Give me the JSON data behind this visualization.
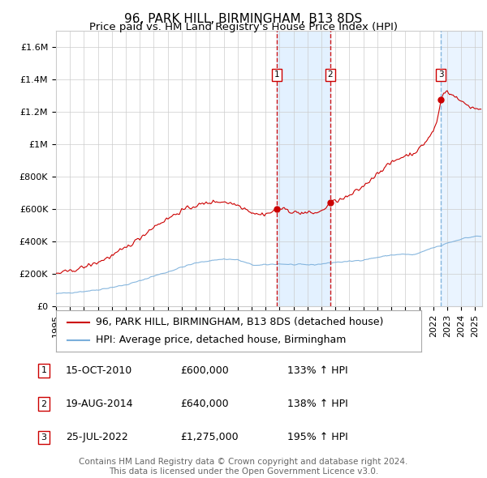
{
  "title": "96, PARK HILL, BIRMINGHAM, B13 8DS",
  "subtitle": "Price paid vs. HM Land Registry's House Price Index (HPI)",
  "ylim": [
    0,
    1700000
  ],
  "xlim_start": 1995.0,
  "xlim_end": 2025.5,
  "yticks": [
    0,
    200000,
    400000,
    600000,
    800000,
    1000000,
    1200000,
    1400000,
    1600000
  ],
  "ytick_labels": [
    "£0",
    "£200K",
    "£400K",
    "£600K",
    "£800K",
    "£1M",
    "£1.2M",
    "£1.4M",
    "£1.6M"
  ],
  "xticks": [
    1995,
    1996,
    1997,
    1998,
    1999,
    2000,
    2001,
    2002,
    2003,
    2004,
    2005,
    2006,
    2007,
    2008,
    2009,
    2010,
    2011,
    2012,
    2013,
    2014,
    2015,
    2016,
    2017,
    2018,
    2019,
    2020,
    2021,
    2022,
    2023,
    2024,
    2025
  ],
  "red_line_color": "#cc0000",
  "blue_line_color": "#7aafdb",
  "background_color": "#ffffff",
  "grid_color": "#cccccc",
  "shade_color": "#ddeeff",
  "sale_markers": [
    {
      "num": 1,
      "year": 2010.79,
      "price": 600000,
      "label": "15-OCT-2010",
      "price_str": "£600,000",
      "hpi_str": "133% ↑ HPI",
      "vline_color": "#cc0000"
    },
    {
      "num": 2,
      "year": 2014.63,
      "price": 640000,
      "label": "19-AUG-2014",
      "price_str": "£640,000",
      "hpi_str": "138% ↑ HPI",
      "vline_color": "#cc0000"
    },
    {
      "num": 3,
      "year": 2022.56,
      "price": 1275000,
      "label": "25-JUL-2022",
      "price_str": "£1,275,000",
      "hpi_str": "195% ↑ HPI",
      "vline_color": "#7aafdb"
    }
  ],
  "legend_entries": [
    {
      "label": "96, PARK HILL, BIRMINGHAM, B13 8DS (detached house)",
      "color": "#cc0000"
    },
    {
      "label": "HPI: Average price, detached house, Birmingham",
      "color": "#7aafdb"
    }
  ],
  "footer": "Contains HM Land Registry data © Crown copyright and database right 2024.\nThis data is licensed under the Open Government Licence v3.0.",
  "title_fontsize": 11,
  "subtitle_fontsize": 9.5,
  "axis_fontsize": 8,
  "legend_fontsize": 9,
  "footer_fontsize": 7.5
}
